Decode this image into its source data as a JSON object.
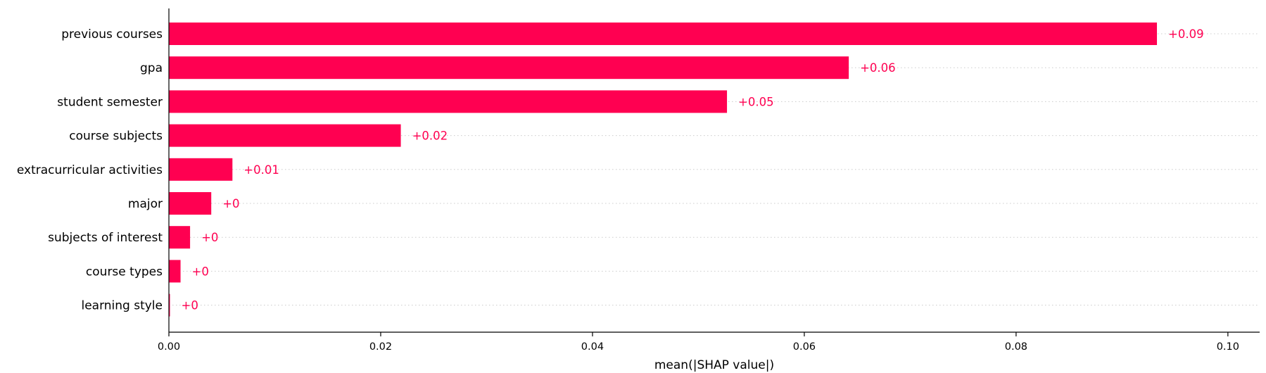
{
  "chart_data": {
    "type": "bar",
    "orientation": "horizontal",
    "categories": [
      "previous courses",
      "gpa",
      "student semester",
      "course subjects",
      "extracurricular activities",
      "major",
      "subjects of interest",
      "course types",
      "learning style"
    ],
    "values": [
      0.0933,
      0.0642,
      0.0527,
      0.0219,
      0.006,
      0.004,
      0.002,
      0.0011,
      0.0001
    ],
    "data_labels": [
      "+0.09",
      "+0.06",
      "+0.05",
      "+0.02",
      "+0.01",
      "+0",
      "+0",
      "+0",
      "+0"
    ],
    "xlabel": "mean(|SHAP value|)",
    "ylabel": "",
    "xlim": [
      0,
      0.103
    ],
    "xticks": [
      0.0,
      0.02,
      0.04,
      0.06,
      0.08,
      0.1
    ],
    "xtick_labels": [
      "0.00",
      "0.02",
      "0.04",
      "0.06",
      "0.08",
      "0.10"
    ],
    "grid": "horizontal dotted lines per row",
    "bar_color": "#ff0051",
    "label_color": "#ff0051",
    "gridline_color": "#cccccc"
  }
}
